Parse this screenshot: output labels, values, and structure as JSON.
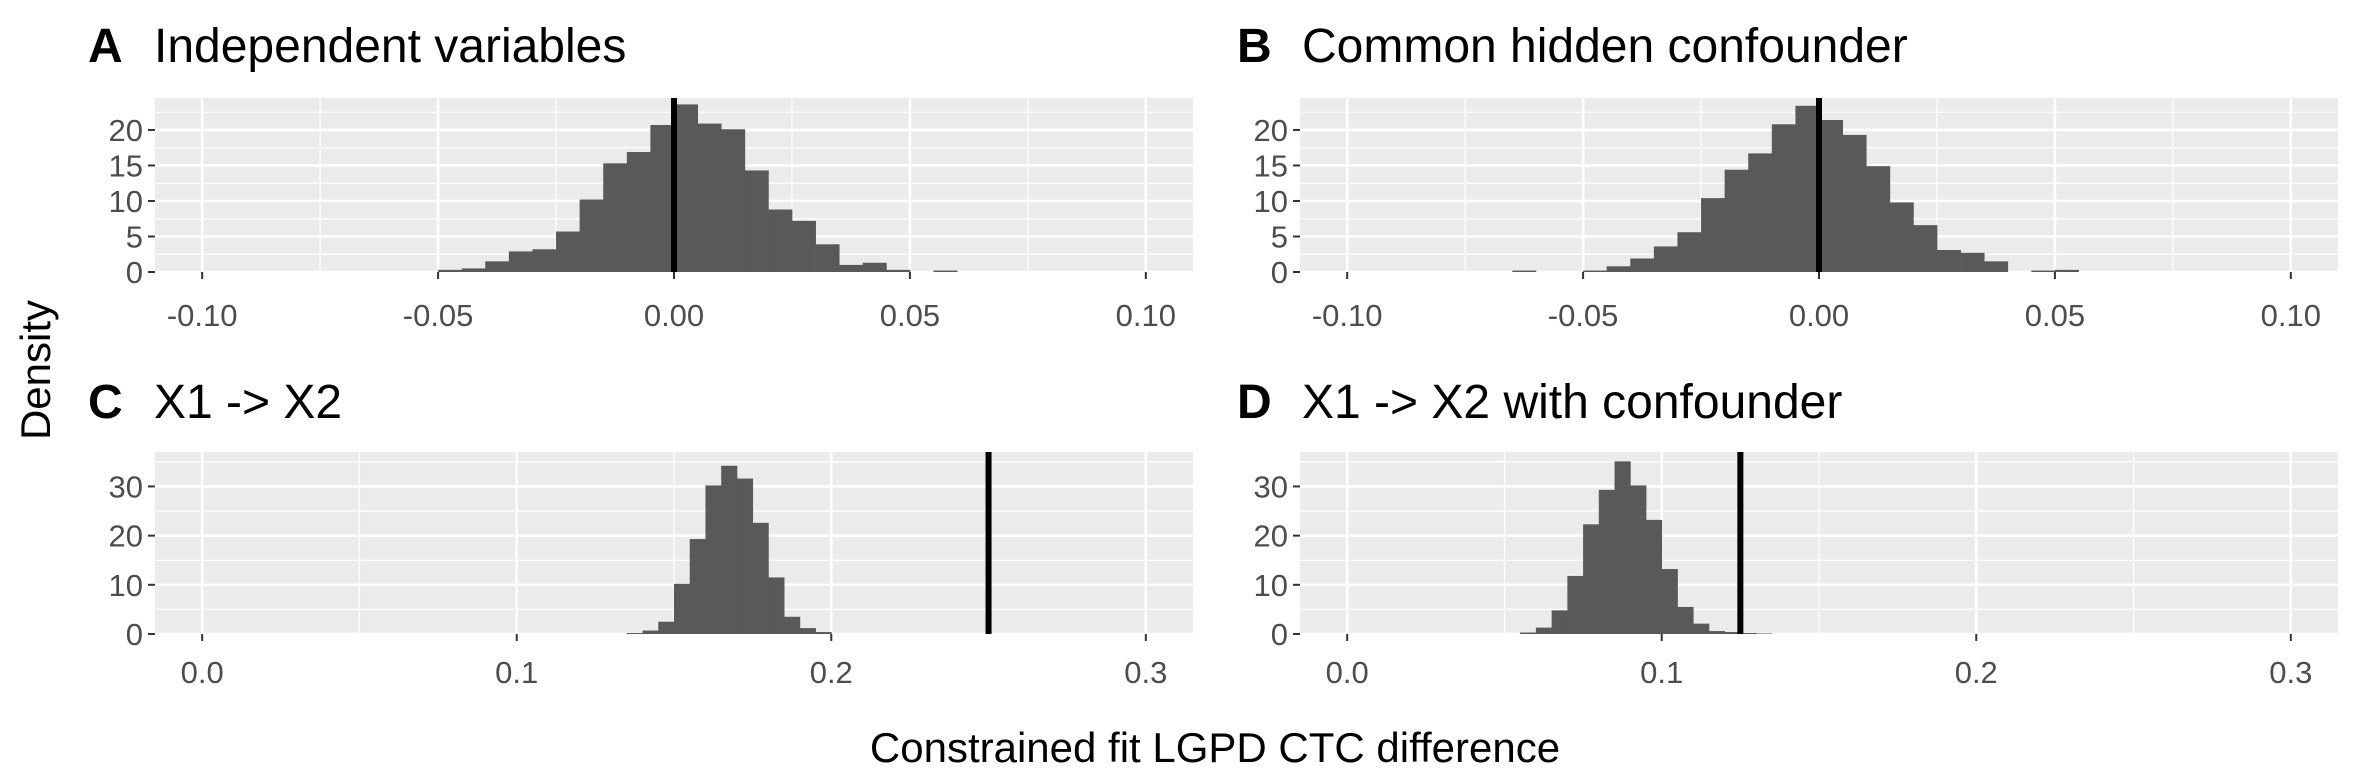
{
  "xlabel": "Constrained fit LGPD CTC difference",
  "ylabel": "Density",
  "chart_data": [
    {
      "type": "bar",
      "panel_tag": "A",
      "title": "Independent variables",
      "xlim": [
        -0.11,
        0.11
      ],
      "ylim": [
        0,
        24.5
      ],
      "x_ticks": [
        -0.1,
        -0.05,
        0.0,
        0.05,
        0.1
      ],
      "x_tick_labels": [
        "-0.10",
        "-0.05",
        "0.00",
        "0.05",
        "0.10"
      ],
      "y_ticks": [
        0,
        5,
        10,
        15,
        20
      ],
      "y_tick_labels": [
        "0",
        "5",
        "10",
        "15",
        "20"
      ],
      "binwidth": 0.005,
      "bin_start": -0.055,
      "values": [
        0,
        0.3,
        0.5,
        1.5,
        2.9,
        3.2,
        5.7,
        10.2,
        15.3,
        16.9,
        20.7,
        23.6,
        20.9,
        20.1,
        14.3,
        8.8,
        7.2,
        3.9,
        1.0,
        1.3,
        0.3,
        0,
        0.2
      ],
      "reference_line": 0.0
    },
    {
      "type": "bar",
      "panel_tag": "B",
      "title": "Common hidden confounder",
      "xlim": [
        -0.11,
        0.11
      ],
      "ylim": [
        0,
        24.5
      ],
      "x_ticks": [
        -0.1,
        -0.05,
        0.0,
        0.05,
        0.1
      ],
      "x_tick_labels": [
        "-0.10",
        "-0.05",
        "0.00",
        "0.05",
        "0.10"
      ],
      "y_ticks": [
        0,
        5,
        10,
        15,
        20
      ],
      "y_tick_labels": [
        "0",
        "5",
        "10",
        "15",
        "20"
      ],
      "binwidth": 0.005,
      "bin_start": -0.065,
      "values": [
        0.2,
        0,
        0,
        0.2,
        0.8,
        1.9,
        3.6,
        5.6,
        10.4,
        14.4,
        16.7,
        20.8,
        23.4,
        21.4,
        19.3,
        14.9,
        9.8,
        6.6,
        3.1,
        2.7,
        1.5,
        0,
        0.2,
        0.3
      ],
      "reference_line": 0.0
    },
    {
      "type": "bar",
      "panel_tag": "C",
      "title": "X1 -> X2",
      "xlim": [
        -0.015,
        0.315
      ],
      "ylim": [
        0,
        37
      ],
      "x_ticks": [
        0.0,
        0.1,
        0.2,
        0.3
      ],
      "x_tick_labels": [
        "0.0",
        "0.1",
        "0.2",
        "0.3"
      ],
      "y_ticks": [
        0,
        10,
        20,
        30
      ],
      "y_tick_labels": [
        "0",
        "10",
        "20",
        "30"
      ],
      "binwidth": 0.005,
      "bin_start": 0.135,
      "values": [
        0.2,
        0.7,
        2.5,
        10.2,
        19.3,
        30.2,
        34.2,
        31.6,
        22.6,
        11.5,
        3.5,
        1.2,
        0.4
      ],
      "reference_line": 0.25
    },
    {
      "type": "bar",
      "panel_tag": "D",
      "title": "X1 -> X2 with confounder",
      "xlim": [
        -0.015,
        0.315
      ],
      "ylim": [
        0,
        37
      ],
      "x_ticks": [
        0.0,
        0.1,
        0.2,
        0.3
      ],
      "x_tick_labels": [
        "0.0",
        "0.1",
        "0.2",
        "0.3"
      ],
      "y_ticks": [
        0,
        10,
        20,
        30
      ],
      "y_tick_labels": [
        "0",
        "10",
        "20",
        "30"
      ],
      "binwidth": 0.005,
      "bin_start": 0.055,
      "values": [
        0.3,
        1.3,
        4.8,
        11.8,
        22.3,
        29.3,
        35.1,
        30.2,
        23.2,
        13.2,
        5.5,
        2.1,
        0.6,
        0.4,
        0.2,
        0.1
      ],
      "reference_line": 0.125
    }
  ]
}
